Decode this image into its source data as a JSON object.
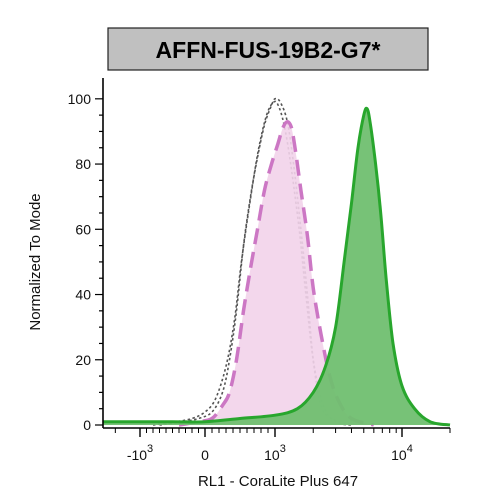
{
  "chart_data": {
    "type": "area",
    "title": "AFFN-FUS-19B2-G7*",
    "xlabel": "RL1 - CoraLite Plus 647",
    "ylabel": "Normalized To Mode",
    "x_scale": "biexponential",
    "xlim": [
      -2500,
      20000
    ],
    "ylim": [
      0,
      100
    ],
    "x_tick_labels": [
      {
        "value": -1000,
        "base": "-10",
        "exp": "3"
      },
      {
        "value": 0,
        "label": "0"
      },
      {
        "value": 1000,
        "base": "10",
        "exp": "3"
      },
      {
        "value": 10000,
        "base": "10",
        "exp": "4"
      }
    ],
    "y_ticks": [
      0,
      20,
      40,
      60,
      80,
      100
    ],
    "grid": false,
    "legend": "none",
    "series": [
      {
        "style": "dotted-gray-outline",
        "color": "#555555",
        "points": [
          [
            -700,
            0
          ],
          [
            -350,
            1
          ],
          [
            -100,
            2
          ],
          [
            100,
            4
          ],
          [
            250,
            10
          ],
          [
            350,
            20
          ],
          [
            450,
            35
          ],
          [
            550,
            55
          ],
          [
            650,
            70
          ],
          [
            750,
            82
          ],
          [
            850,
            92
          ],
          [
            950,
            98
          ],
          [
            1000,
            100
          ],
          [
            1100,
            99
          ],
          [
            1250,
            93
          ],
          [
            1400,
            80
          ],
          [
            1600,
            60
          ],
          [
            1800,
            40
          ],
          [
            2000,
            20
          ],
          [
            2300,
            6
          ],
          [
            2800,
            2
          ],
          [
            4000,
            0
          ]
        ]
      },
      {
        "style": "dotted-gray-outline",
        "color": "#555555",
        "points": [
          [
            -800,
            0
          ],
          [
            -450,
            1
          ],
          [
            -200,
            2
          ],
          [
            0,
            4
          ],
          [
            150,
            8
          ],
          [
            300,
            18
          ],
          [
            420,
            32
          ],
          [
            520,
            50
          ],
          [
            640,
            68
          ],
          [
            760,
            84
          ],
          [
            880,
            95
          ],
          [
            980,
            99
          ],
          [
            1060,
            98
          ],
          [
            1180,
            92
          ],
          [
            1330,
            80
          ],
          [
            1550,
            60
          ],
          [
            1750,
            40
          ],
          [
            2000,
            20
          ],
          [
            2400,
            6
          ],
          [
            3000,
            1
          ],
          [
            4000,
            0
          ]
        ]
      },
      {
        "style": "pink-dashed-filled",
        "color": "#cc77c4",
        "fill": "#f2d3ea",
        "points": [
          [
            -400,
            0
          ],
          [
            -100,
            1
          ],
          [
            100,
            2
          ],
          [
            250,
            6
          ],
          [
            350,
            10
          ],
          [
            450,
            20
          ],
          [
            550,
            35
          ],
          [
            650,
            48
          ],
          [
            750,
            60
          ],
          [
            850,
            72
          ],
          [
            950,
            80
          ],
          [
            1050,
            86
          ],
          [
            1150,
            91
          ],
          [
            1250,
            93
          ],
          [
            1350,
            91
          ],
          [
            1450,
            84
          ],
          [
            1600,
            72
          ],
          [
            1800,
            58
          ],
          [
            2000,
            42
          ],
          [
            2300,
            28
          ],
          [
            2700,
            15
          ],
          [
            3200,
            7
          ],
          [
            4000,
            2
          ],
          [
            6000,
            0
          ]
        ]
      },
      {
        "style": "green-solid-filled",
        "color": "#28a62d",
        "fill": "#70bf70",
        "points": [
          [
            -2500,
            1
          ],
          [
            -1500,
            1
          ],
          [
            -500,
            1
          ],
          [
            0,
            1
          ],
          [
            500,
            2
          ],
          [
            1000,
            3
          ],
          [
            1500,
            5
          ],
          [
            2000,
            10
          ],
          [
            2500,
            18
          ],
          [
            3000,
            30
          ],
          [
            3500,
            50
          ],
          [
            4000,
            68
          ],
          [
            4500,
            85
          ],
          [
            5000,
            95
          ],
          [
            5300,
            97
          ],
          [
            5600,
            93
          ],
          [
            6200,
            80
          ],
          [
            6800,
            65
          ],
          [
            7500,
            45
          ],
          [
            8500,
            25
          ],
          [
            10000,
            12
          ],
          [
            12000,
            5
          ],
          [
            15000,
            1
          ],
          [
            20000,
            0
          ]
        ]
      }
    ]
  }
}
